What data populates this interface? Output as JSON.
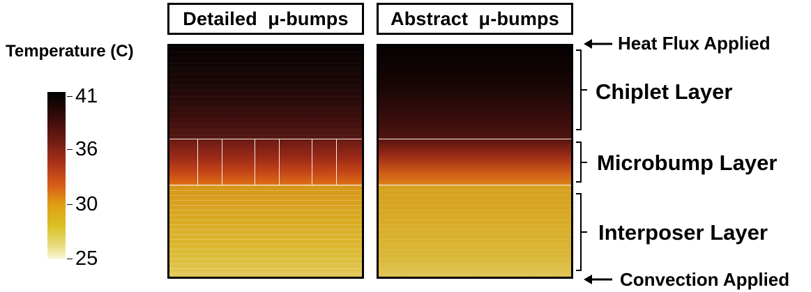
{
  "panels": {
    "left_title": "Detailed  μ-bumps",
    "right_title": "Abstract  μ-bumps"
  },
  "colorbar": {
    "title": "Temperature (C)",
    "ticks": [
      {
        "label": "41",
        "value": 41
      },
      {
        "label": "36",
        "value": 36
      },
      {
        "label": "30",
        "value": 30
      },
      {
        "label": "25",
        "value": 25
      }
    ],
    "min": 25,
    "max": 41
  },
  "annotations": {
    "heat_flux": "Heat Flux Applied",
    "chiplet": "Chiplet Layer",
    "microbump": "Microbump Layer",
    "interposer": "Interposer Layer",
    "convection": "Convection Applied"
  }
}
